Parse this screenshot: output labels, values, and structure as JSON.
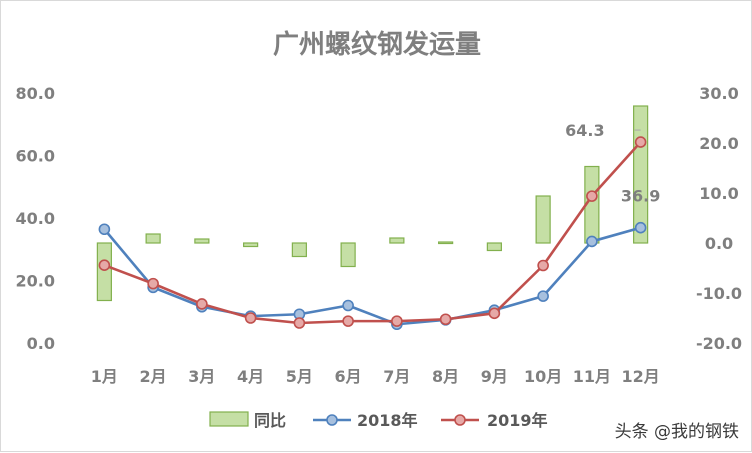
{
  "chart_data": {
    "type": "bar+line",
    "title": "广州螺纹钢发运量",
    "categories": [
      "1月",
      "2月",
      "3月",
      "4月",
      "5月",
      "6月",
      "7月",
      "8月",
      "9月",
      "10月",
      "11月",
      "12月"
    ],
    "left_axis": {
      "ylim": [
        0,
        80
      ],
      "ticks": [
        "0.0",
        "20.0",
        "40.0",
        "60.0",
        "80.0"
      ]
    },
    "right_axis": {
      "ylim": [
        -20,
        30
      ],
      "ticks": [
        "-20.0",
        "-10.0",
        "0.0",
        "10.0",
        "20.0",
        "30.0"
      ]
    },
    "series": [
      {
        "name": "同比",
        "kind": "bar",
        "axis": "right",
        "color": "#c5dfa5",
        "edge": "#82b04d",
        "values": [
          -11.5,
          1.8,
          0.8,
          -0.7,
          -2.7,
          -4.7,
          1.0,
          0.2,
          -1.5,
          9.4,
          15.3,
          27.4
        ]
      },
      {
        "name": "2018年",
        "kind": "line",
        "axis": "left",
        "color": "#4f81bd",
        "values": [
          36.4,
          17.8,
          11.6,
          8.6,
          9.2,
          12.0,
          6.0,
          7.4,
          10.5,
          15.0,
          32.5,
          36.9
        ]
      },
      {
        "name": "2019年",
        "kind": "line",
        "axis": "left",
        "color": "#c0504d",
        "values": [
          24.9,
          19.0,
          12.5,
          8.0,
          6.4,
          7.0,
          7.0,
          7.6,
          9.5,
          24.8,
          47.0,
          64.3
        ]
      }
    ],
    "data_labels": [
      {
        "series": "2019年",
        "index": 11,
        "text": "64.3"
      },
      {
        "series": "2018年",
        "index": 11,
        "text": "36.9"
      }
    ],
    "legend": {
      "placement": "bottom",
      "entries": [
        "同比",
        "2018年",
        "2019年"
      ]
    },
    "grid": false
  },
  "watermark": "头条 @我的钢铁"
}
